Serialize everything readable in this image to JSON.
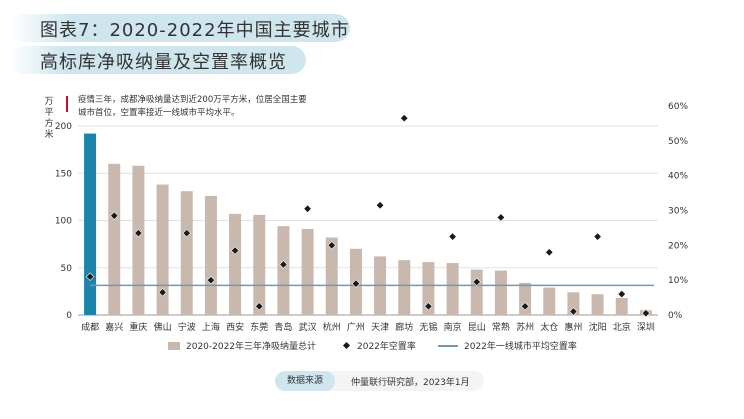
{
  "title": {
    "line1": "图表7：2020-2022年中国主要城市",
    "line2": "高标库净吸纳量及空置率概览"
  },
  "note": "疫情三年，成都净吸纳量达到近200万平方米，位居全国主要城市首位，空置率接近一线城市平均水平。",
  "source": {
    "label": "数据来源",
    "text": "仲量联行研究部，2023年1月"
  },
  "colors": {
    "bar": "#c8b8ad",
    "bar_highlight": "#1a84aa",
    "marker": "#1a1a1a",
    "avg_line": "#6f98b3",
    "accent": "#c8102e",
    "title_bg": "#cfe6ee"
  },
  "chart_data": {
    "type": "bar",
    "ylabel_left": "万平方米",
    "ylim_left": [
      0,
      200
    ],
    "yticks_left": [
      "0",
      "50",
      "100",
      "150",
      "200"
    ],
    "ylim_right": [
      0,
      60
    ],
    "yticks_right": [
      "0%",
      "10%",
      "20%",
      "30%",
      "40%",
      "50%",
      "60%"
    ],
    "categories": [
      "成都",
      "嘉兴",
      "重庆",
      "佛山",
      "宁波",
      "上海",
      "西安",
      "东莞",
      "青岛",
      "武汉",
      "杭州",
      "广州",
      "天津",
      "廊坊",
      "无锡",
      "南京",
      "昆山",
      "常熟",
      "苏州",
      "太仓",
      "惠州",
      "沈阳",
      "北京",
      "深圳"
    ],
    "series": [
      {
        "name": "2020-2022年三年净吸纳量总计",
        "kind": "bar",
        "axis": "left",
        "values": [
          192,
          160,
          158,
          138,
          131,
          126,
          107,
          106,
          94,
          91,
          82,
          70,
          62,
          58,
          56,
          55,
          48,
          47,
          34,
          29,
          24,
          22,
          18,
          5
        ]
      },
      {
        "name": "2022年空置率",
        "kind": "scatter",
        "axis": "right",
        "values": [
          11,
          28.5,
          23.5,
          6.5,
          23.5,
          10,
          18.5,
          2.5,
          14.5,
          30.5,
          20,
          9,
          31.5,
          56.5,
          2.5,
          22.5,
          9.5,
          28,
          2.5,
          18,
          1,
          22.5,
          6,
          0.5
        ]
      },
      {
        "name": "2022年一线城市平均空置率",
        "kind": "line",
        "axis": "right",
        "value": 8.5
      }
    ]
  }
}
